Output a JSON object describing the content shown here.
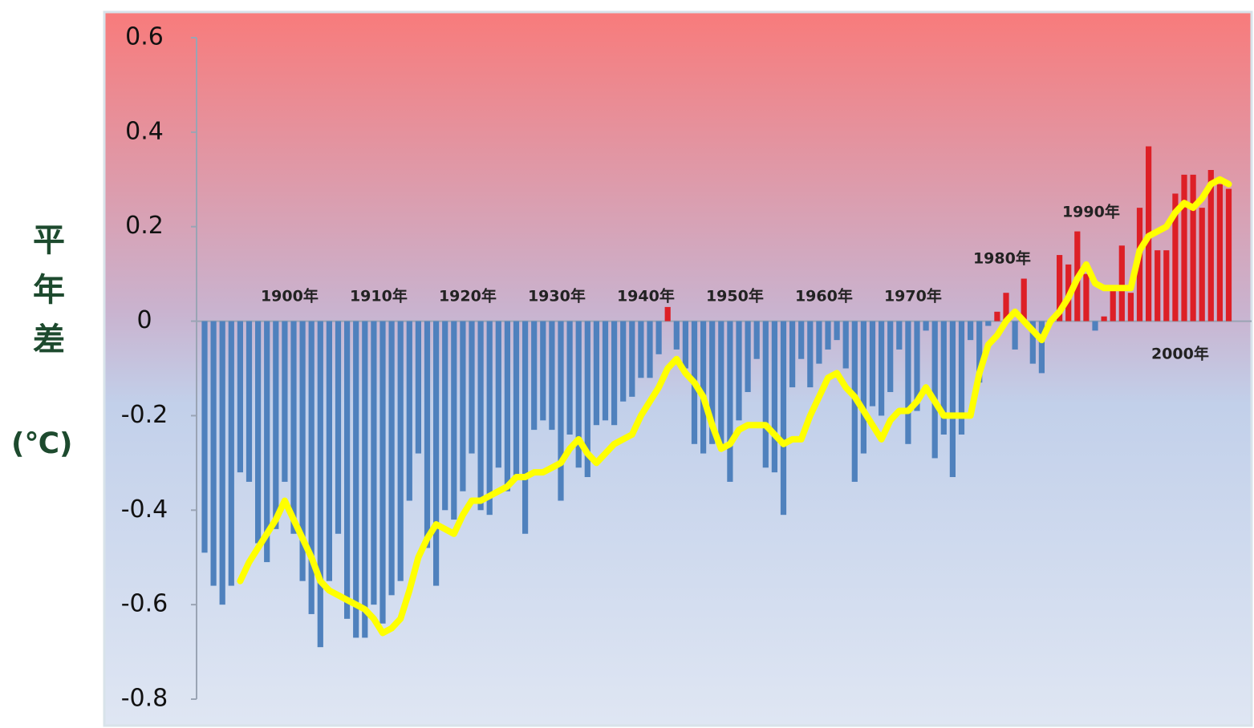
{
  "chart_data": {
    "type": "bar",
    "ylabel": "平年差",
    "ylabel_unit": "(℃)",
    "categories": [
      null,
      null,
      null,
      null,
      null,
      null,
      null,
      null,
      null,
      "1900年",
      null,
      null,
      null,
      null,
      null,
      null,
      null,
      null,
      null,
      "1910年",
      null,
      null,
      null,
      null,
      null,
      null,
      null,
      null,
      null,
      "1920年",
      null,
      null,
      null,
      null,
      null,
      null,
      null,
      null,
      null,
      "1930年",
      null,
      null,
      null,
      null,
      null,
      null,
      null,
      null,
      null,
      "1940年",
      null,
      null,
      null,
      null,
      null,
      null,
      null,
      null,
      null,
      "1950年",
      null,
      null,
      null,
      null,
      null,
      null,
      null,
      null,
      null,
      "1960年",
      null,
      null,
      null,
      null,
      null,
      null,
      null,
      null,
      null,
      "1970年",
      null,
      null,
      null,
      null,
      null,
      null,
      null,
      null,
      null,
      "1980年",
      null,
      null,
      null,
      null,
      null,
      null,
      null,
      null,
      null,
      "1990年",
      null,
      null,
      null,
      null,
      null,
      null,
      null,
      null,
      null,
      "2000年",
      null,
      null,
      null,
      null,
      null,
      null
    ],
    "series": [
      {
        "type": "bar",
        "color": "#dd1f26",
        "negative_color": "#4f81bd",
        "values": [
          -0.49,
          -0.56,
          -0.6,
          -0.56,
          -0.32,
          -0.34,
          -0.47,
          -0.51,
          -0.44,
          -0.34,
          -0.45,
          -0.55,
          -0.62,
          -0.69,
          -0.55,
          -0.45,
          -0.63,
          -0.67,
          -0.67,
          -0.6,
          -0.64,
          -0.58,
          -0.55,
          -0.38,
          -0.28,
          -0.48,
          -0.56,
          -0.4,
          -0.42,
          -0.36,
          -0.28,
          -0.4,
          -0.41,
          -0.31,
          -0.36,
          -0.33,
          -0.45,
          -0.23,
          -0.21,
          -0.23,
          -0.38,
          -0.24,
          -0.31,
          -0.33,
          -0.22,
          -0.21,
          -0.22,
          -0.17,
          -0.16,
          -0.12,
          -0.12,
          -0.07,
          0.03,
          -0.06,
          -0.1,
          -0.26,
          -0.28,
          -0.26,
          -0.26,
          -0.34,
          -0.21,
          -0.15,
          -0.08,
          -0.31,
          -0.32,
          -0.41,
          -0.14,
          -0.08,
          -0.14,
          -0.09,
          -0.06,
          -0.04,
          -0.1,
          -0.34,
          -0.28,
          -0.18,
          -0.2,
          -0.15,
          -0.06,
          -0.26,
          -0.19,
          -0.02,
          -0.29,
          -0.24,
          -0.33,
          -0.24,
          -0.04,
          -0.13,
          -0.01,
          0.02,
          0.06,
          -0.06,
          0.09,
          -0.09,
          -0.11,
          0.0,
          0.14,
          0.12,
          0.19,
          0.1,
          -0.02,
          0.01,
          0.07,
          0.16,
          0.06,
          0.24,
          0.37,
          0.15,
          0.15,
          0.27,
          0.31,
          0.31,
          0.24,
          0.32,
          0.29,
          0.28
        ]
      },
      {
        "type": "line",
        "color": "#ffff00",
        "values": [
          null,
          null,
          null,
          null,
          -0.55,
          -0.51,
          -0.48,
          -0.45,
          -0.42,
          -0.38,
          -0.42,
          -0.46,
          -0.5,
          -0.55,
          -0.57,
          -0.58,
          -0.59,
          -0.6,
          -0.61,
          -0.63,
          -0.66,
          -0.65,
          -0.63,
          -0.57,
          -0.5,
          -0.46,
          -0.43,
          -0.44,
          -0.45,
          -0.41,
          -0.38,
          -0.38,
          -0.37,
          -0.36,
          -0.35,
          -0.33,
          -0.33,
          -0.32,
          -0.32,
          -0.31,
          -0.3,
          -0.27,
          -0.25,
          -0.28,
          -0.3,
          -0.28,
          -0.26,
          -0.25,
          -0.24,
          -0.2,
          -0.17,
          -0.14,
          -0.1,
          -0.08,
          -0.11,
          -0.13,
          -0.16,
          -0.22,
          -0.27,
          -0.26,
          -0.23,
          -0.22,
          -0.22,
          -0.22,
          -0.24,
          -0.26,
          -0.25,
          -0.25,
          -0.2,
          -0.16,
          -0.12,
          -0.11,
          -0.14,
          -0.16,
          -0.19,
          -0.22,
          -0.25,
          -0.21,
          -0.19,
          -0.19,
          -0.17,
          -0.14,
          -0.17,
          -0.2,
          -0.2,
          -0.2,
          -0.2,
          -0.11,
          -0.05,
          -0.03,
          0.0,
          0.02,
          0.0,
          -0.02,
          -0.04,
          0.0,
          0.02,
          0.05,
          0.09,
          0.12,
          0.08,
          0.07,
          0.07,
          0.07,
          0.07,
          0.15,
          0.18,
          0.19,
          0.2,
          0.23,
          0.25,
          0.24,
          0.26,
          0.29,
          0.3,
          0.29
        ]
      }
    ],
    "ylim": [
      -0.8,
      0.6
    ],
    "yticks": [
      0.6,
      0.4,
      0.2,
      0,
      -0.2,
      -0.4,
      -0.6,
      -0.8
    ]
  }
}
